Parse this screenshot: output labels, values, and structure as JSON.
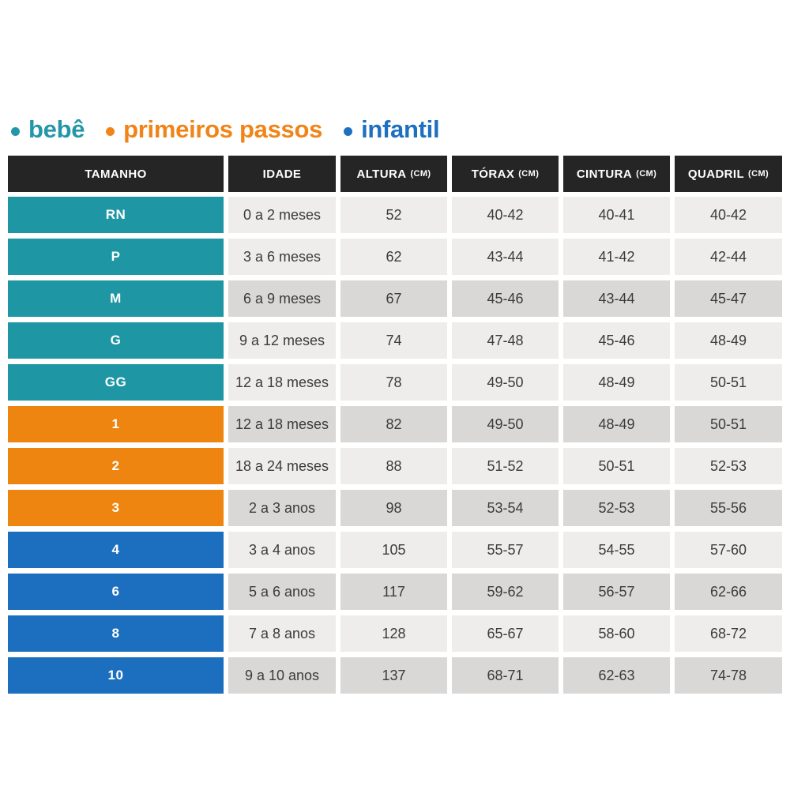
{
  "legend": {
    "items": [
      {
        "id": "bebe",
        "label": "bebê",
        "color": "#2396A7"
      },
      {
        "id": "primeiros_passos",
        "label": "primeiros passos",
        "color": "#F08419"
      },
      {
        "id": "infantil",
        "label": "infantil",
        "color": "#1D70C0"
      }
    ]
  },
  "table": {
    "header_bg": "#262525",
    "header_text_color": "#FFFFFF",
    "cell_text_color": "#3B3B3B",
    "row_group_colors": {
      "bebe": "#1E96A4",
      "primeiros_passos": "#EE8511",
      "infantil": "#1C6FBE"
    },
    "cell_shades": {
      "light": "#EEEDEB",
      "dark": "#D9D8D6"
    },
    "headers": [
      {
        "label": "TAMANHO",
        "unit": ""
      },
      {
        "label": "IDADE",
        "unit": ""
      },
      {
        "label": "ALTURA",
        "unit": "(CM)"
      },
      {
        "label": "TÓRAX",
        "unit": "(CM)"
      },
      {
        "label": "CINTURA",
        "unit": "(CM)"
      },
      {
        "label": "QUADRIL",
        "unit": "(CM)"
      }
    ],
    "rows": [
      {
        "tamanho": "RN",
        "group": "bebe",
        "shade": "light",
        "idade": "0 a 2 meses",
        "altura": "52",
        "torax": "40-42",
        "cintura": "40-41",
        "quadril": "40-42"
      },
      {
        "tamanho": "P",
        "group": "bebe",
        "shade": "light",
        "idade": "3 a 6 meses",
        "altura": "62",
        "torax": "43-44",
        "cintura": "41-42",
        "quadril": "42-44"
      },
      {
        "tamanho": "M",
        "group": "bebe",
        "shade": "dark",
        "idade": "6 a 9 meses",
        "altura": "67",
        "torax": "45-46",
        "cintura": "43-44",
        "quadril": "45-47"
      },
      {
        "tamanho": "G",
        "group": "bebe",
        "shade": "light",
        "idade": "9 a 12 meses",
        "altura": "74",
        "torax": "47-48",
        "cintura": "45-46",
        "quadril": "48-49"
      },
      {
        "tamanho": "GG",
        "group": "bebe",
        "shade": "light",
        "idade": "12 a 18 meses",
        "altura": "78",
        "torax": "49-50",
        "cintura": "48-49",
        "quadril": "50-51"
      },
      {
        "tamanho": "1",
        "group": "primeiros_passos",
        "shade": "dark",
        "idade": "12 a 18 meses",
        "altura": "82",
        "torax": "49-50",
        "cintura": "48-49",
        "quadril": "50-51"
      },
      {
        "tamanho": "2",
        "group": "primeiros_passos",
        "shade": "light",
        "idade": "18 a 24 meses",
        "altura": "88",
        "torax": "51-52",
        "cintura": "50-51",
        "quadril": "52-53"
      },
      {
        "tamanho": "3",
        "group": "primeiros_passos",
        "shade": "dark",
        "idade": "2 a 3 anos",
        "altura": "98",
        "torax": "53-54",
        "cintura": "52-53",
        "quadril": "55-56"
      },
      {
        "tamanho": "4",
        "group": "infantil",
        "shade": "light",
        "idade": "3 a 4 anos",
        "altura": "105",
        "torax": "55-57",
        "cintura": "54-55",
        "quadril": "57-60"
      },
      {
        "tamanho": "6",
        "group": "infantil",
        "shade": "dark",
        "idade": "5 a 6 anos",
        "altura": "117",
        "torax": "59-62",
        "cintura": "56-57",
        "quadril": "62-66"
      },
      {
        "tamanho": "8",
        "group": "infantil",
        "shade": "light",
        "idade": "7 a 8 anos",
        "altura": "128",
        "torax": "65-67",
        "cintura": "58-60",
        "quadril": "68-72"
      },
      {
        "tamanho": "10",
        "group": "infantil",
        "shade": "dark",
        "idade": "9 a 10 anos",
        "altura": "137",
        "torax": "68-71",
        "cintura": "62-63",
        "quadril": "74-78"
      }
    ]
  },
  "chart_data": {
    "type": "table",
    "columns": [
      "TAMANHO",
      "IDADE",
      "ALTURA (CM)",
      "TÓRAX (CM)",
      "CINTURA (CM)",
      "QUADRIL (CM)"
    ],
    "rows": [
      [
        "RN",
        "0 a 2 meses",
        "52",
        "40-42",
        "40-41",
        "40-42"
      ],
      [
        "P",
        "3 a 6 meses",
        "62",
        "43-44",
        "41-42",
        "42-44"
      ],
      [
        "M",
        "6 a 9 meses",
        "67",
        "45-46",
        "43-44",
        "45-47"
      ],
      [
        "G",
        "9 a 12 meses",
        "74",
        "47-48",
        "45-46",
        "48-49"
      ],
      [
        "GG",
        "12 a 18 meses",
        "78",
        "49-50",
        "48-49",
        "50-51"
      ],
      [
        "1",
        "12 a 18 meses",
        "82",
        "49-50",
        "48-49",
        "50-51"
      ],
      [
        "2",
        "18 a 24 meses",
        "88",
        "51-52",
        "50-51",
        "52-53"
      ],
      [
        "3",
        "2 a 3 anos",
        "98",
        "53-54",
        "52-53",
        "55-56"
      ],
      [
        "4",
        "3 a 4 anos",
        "105",
        "55-57",
        "54-55",
        "57-60"
      ],
      [
        "6",
        "5 a 6 anos",
        "117",
        "59-62",
        "56-57",
        "62-66"
      ],
      [
        "8",
        "7 a 8 anos",
        "128",
        "65-67",
        "58-60",
        "68-72"
      ],
      [
        "10",
        "9 a 10 anos",
        "137",
        "68-71",
        "62-63",
        "74-78"
      ]
    ],
    "legend_entries": [
      "bebê",
      "primeiros passos",
      "infantil"
    ],
    "legend_position": "top-left"
  }
}
